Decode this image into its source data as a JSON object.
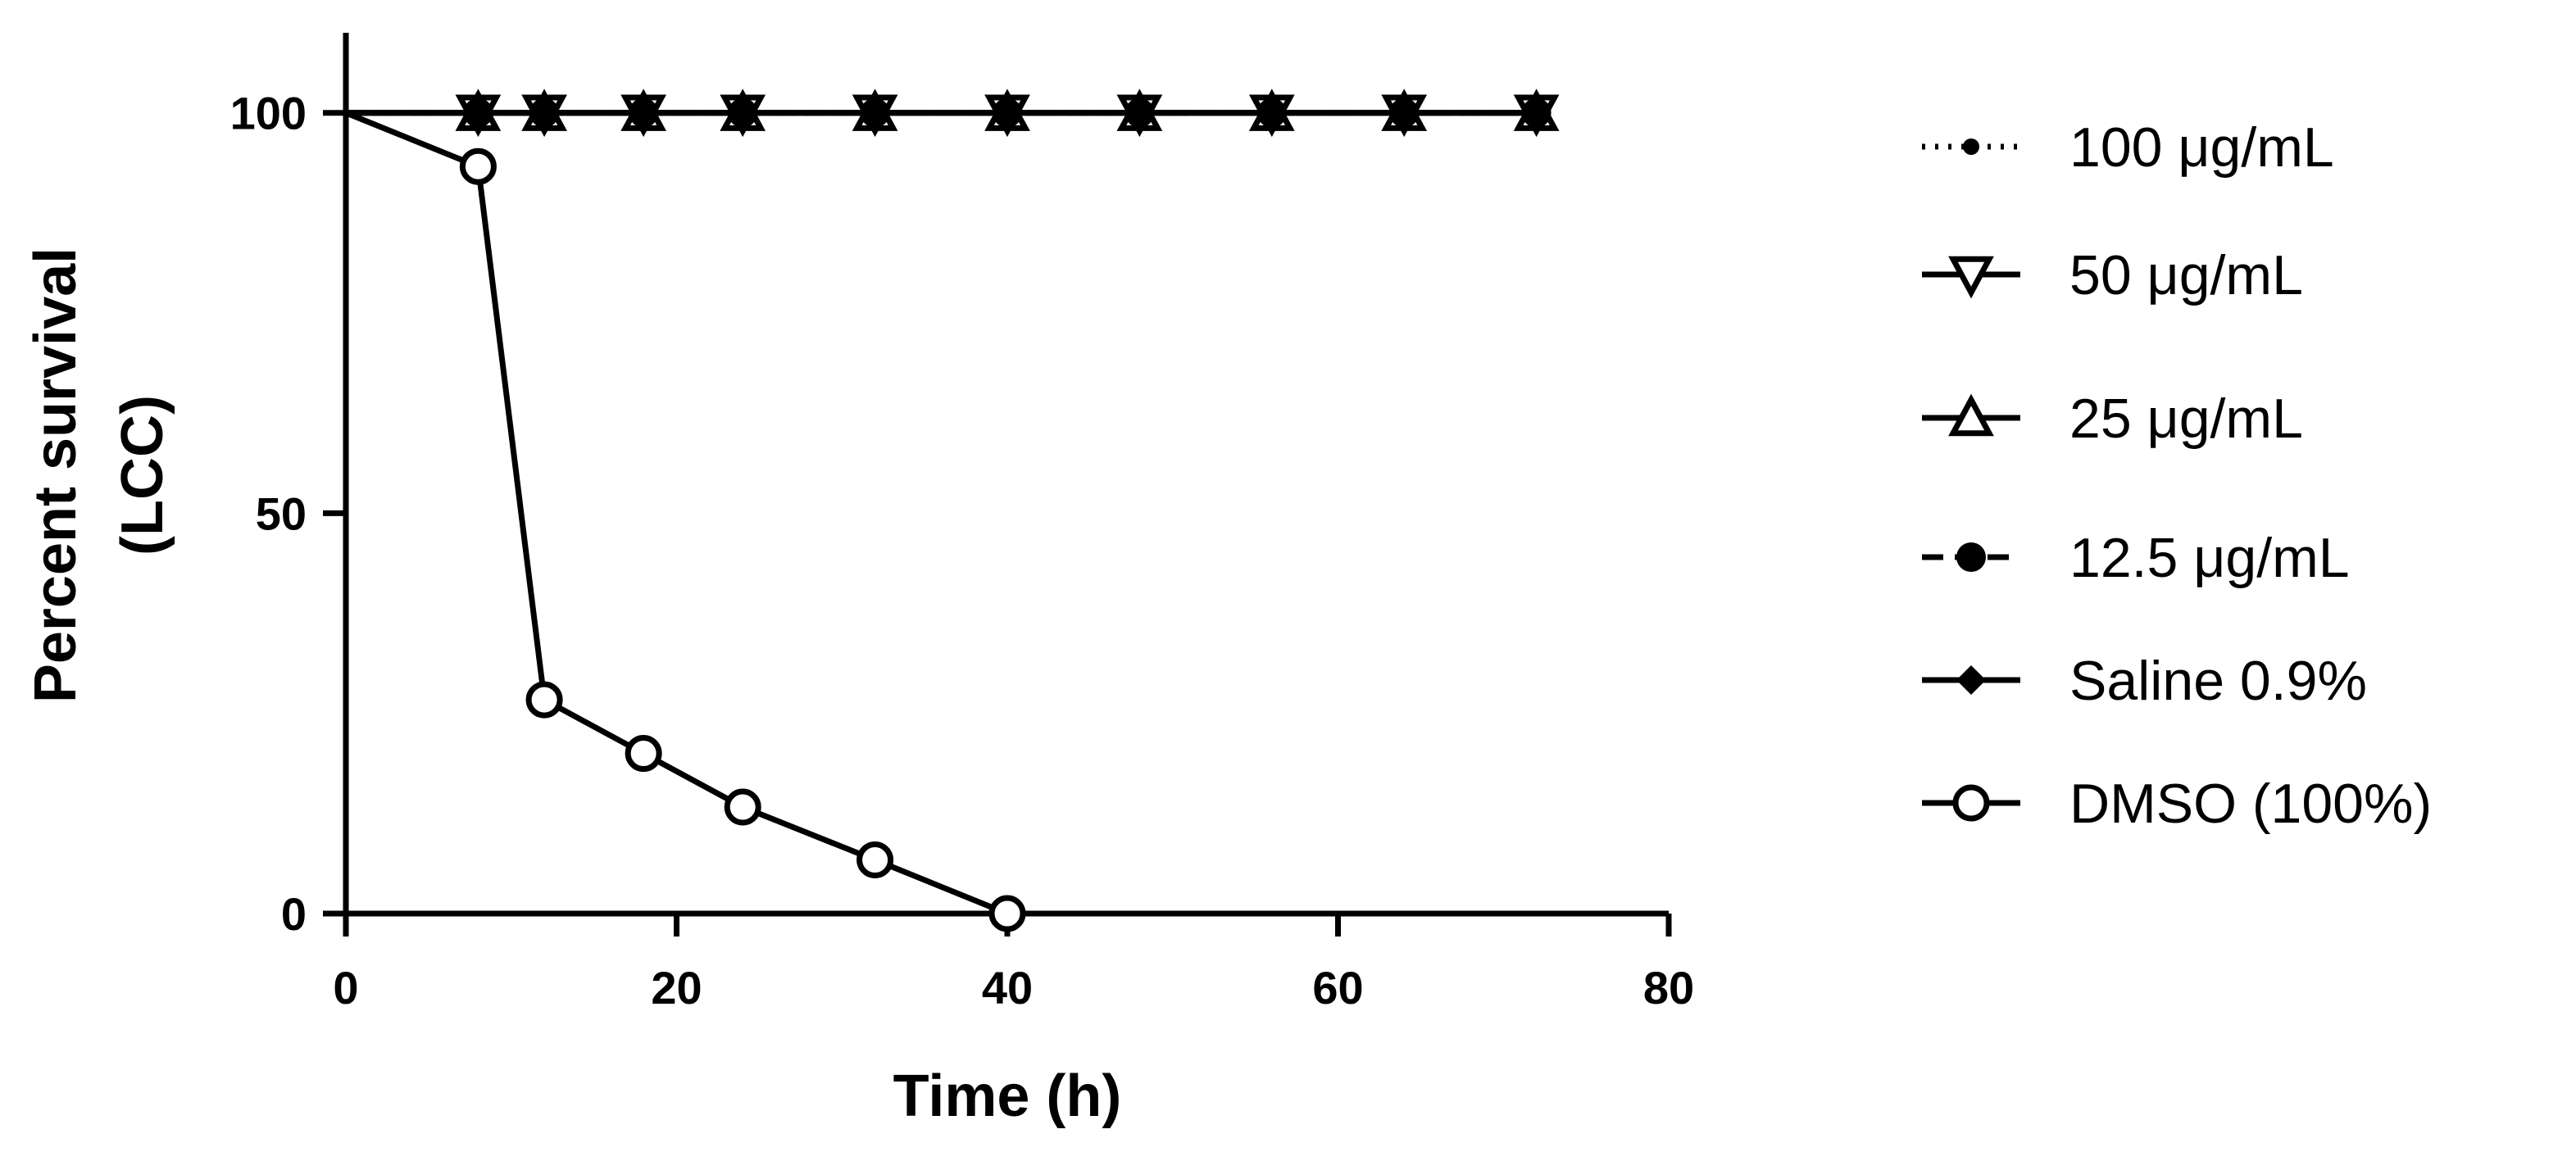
{
  "chart_data": {
    "type": "line",
    "title": "",
    "xlabel": "Time (h)",
    "ylabel_lines": [
      "Percent survival",
      "(LCC)"
    ],
    "xlim": [
      0,
      80
    ],
    "ylim": [
      0,
      110
    ],
    "x_ticks": [
      0,
      20,
      40,
      60,
      80
    ],
    "y_ticks": [
      0,
      50,
      100
    ],
    "grid": false,
    "legend_position": "right",
    "series": [
      {
        "name": "100 μg/mL",
        "marker": "filled-circle-small",
        "line": "dotted",
        "x": [
          0,
          8,
          12,
          18,
          24,
          32,
          40,
          48,
          56,
          64,
          72
        ],
        "values": [
          100,
          100,
          100,
          100,
          100,
          100,
          100,
          100,
          100,
          100,
          100
        ]
      },
      {
        "name": "50 μg/mL",
        "marker": "triangle-down",
        "line": "solid",
        "x": [
          0,
          8,
          12,
          18,
          24,
          32,
          40,
          48,
          56,
          64,
          72
        ],
        "values": [
          100,
          100,
          100,
          100,
          100,
          100,
          100,
          100,
          100,
          100,
          100
        ]
      },
      {
        "name": "25 μg/mL",
        "marker": "triangle-up",
        "line": "solid",
        "x": [
          0,
          8,
          12,
          18,
          24,
          32,
          40,
          48,
          56,
          64,
          72
        ],
        "values": [
          100,
          100,
          100,
          100,
          100,
          100,
          100,
          100,
          100,
          100,
          100
        ]
      },
      {
        "name": "12.5 μg/mL",
        "marker": "filled-circle",
        "line": "dashed",
        "x": [
          0,
          8,
          12,
          18,
          24,
          32,
          40,
          48,
          56,
          64,
          72
        ],
        "values": [
          100,
          100,
          100,
          100,
          100,
          100,
          100,
          100,
          100,
          100,
          100
        ]
      },
      {
        "name": "Saline 0.9%",
        "marker": "filled-diamond",
        "line": "solid",
        "x": [
          0,
          8,
          12,
          18,
          24,
          32,
          40,
          48,
          56,
          64,
          72
        ],
        "values": [
          100,
          100,
          100,
          100,
          100,
          100,
          100,
          100,
          100,
          100,
          100
        ]
      },
      {
        "name": "DMSO (100%)",
        "marker": "open-circle",
        "line": "solid",
        "x": [
          0,
          8,
          12,
          18,
          24,
          32,
          40
        ],
        "values": [
          100,
          93.3,
          26.7,
          20,
          13.3,
          6.7,
          0
        ]
      }
    ]
  }
}
